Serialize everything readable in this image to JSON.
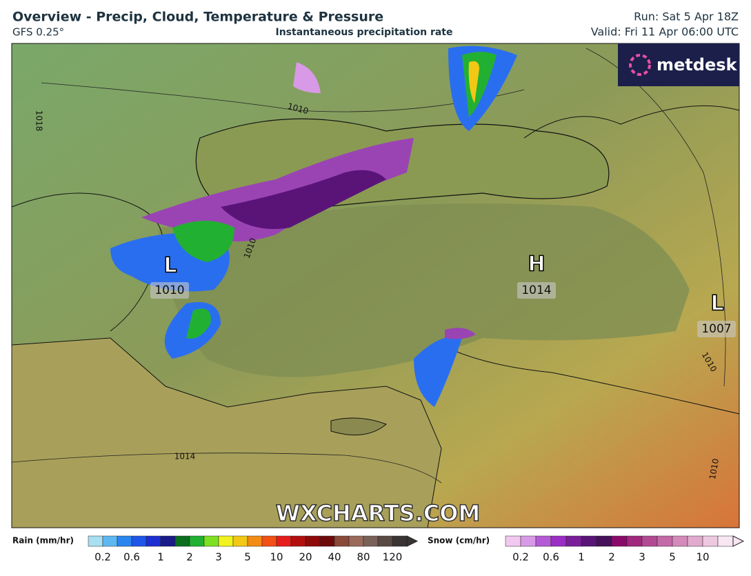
{
  "header": {
    "title": "Overview - Precip, Cloud, Temperature & Pressure",
    "model": "GFS 0.25°",
    "subtitle": "Instantaneous precipitation rate",
    "run": "Run: Sat 5 Apr 18Z",
    "valid": "Valid: Fri 11 Apr 06:00 UTC"
  },
  "logo": "metdesk",
  "watermark": "WXCHARTS.COM",
  "pressure_centers": [
    {
      "letter": "L",
      "value": 1010
    },
    {
      "letter": "H",
      "value": 1014
    },
    {
      "letter": "L",
      "value": 1007
    }
  ],
  "isobar_labels": [
    1010,
    1010,
    1014,
    1018,
    1010,
    1010
  ],
  "legend": {
    "rain": {
      "label": "Rain (mm/hr)",
      "ticks": [
        0.2,
        0.6,
        1,
        2,
        3,
        5,
        10,
        20,
        40,
        80,
        120
      ],
      "colors": [
        "#a9dff0",
        "#5db8f2",
        "#2a86ee",
        "#1f56ea",
        "#1c2fd0",
        "#1a1a88",
        "#0a6e1e",
        "#22b032",
        "#7ee022",
        "#f2f21e",
        "#f2c814",
        "#f28c14",
        "#f25014",
        "#e61c1c",
        "#b40f0f",
        "#8c0a0a",
        "#6e0a0a",
        "#8a4a3a",
        "#9a6a5a",
        "#7a6258",
        "#5a4a44",
        "#3a3434"
      ]
    },
    "snow": {
      "label": "Snow (cm/hr)",
      "ticks": [
        0.2,
        0.6,
        1,
        2,
        3,
        5,
        10
      ],
      "colors": [
        "#f2c8f0",
        "#d89ae6",
        "#b55ad6",
        "#9a2ec4",
        "#7a1e9a",
        "#5a1478",
        "#46105a",
        "#8a0a6a",
        "#a0287e",
        "#b24a92",
        "#c46aa6",
        "#d48aba",
        "#e2aace",
        "#eec8e0",
        "#f8e6f2"
      ]
    }
  }
}
